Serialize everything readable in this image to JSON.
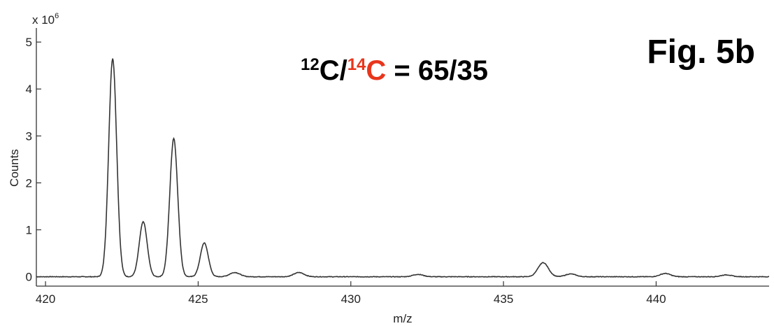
{
  "figure_label": "Fig. 5b",
  "annotation": {
    "mass1": "12",
    "element1": "C/",
    "mass2": "14",
    "element2": "C",
    "equals": " = 65/35",
    "highlight_color": "#e8361c",
    "text_color": "#000000"
  },
  "chart_data": {
    "type": "line",
    "xlabel": "m/z",
    "ylabel": "Counts",
    "y_multiplier": "x 10",
    "y_exponent": "6",
    "xlim": [
      419.7,
      443.7
    ],
    "ylim": [
      -0.2,
      5.3
    ],
    "x_ticks": [
      420,
      425,
      430,
      435,
      440
    ],
    "y_ticks": [
      0,
      1,
      2,
      3,
      4,
      5
    ],
    "grid": false,
    "line_color": "#333333",
    "peaks": [
      {
        "x": 422.2,
        "y": 4.65
      },
      {
        "x": 423.2,
        "y": 1.17
      },
      {
        "x": 424.2,
        "y": 2.95
      },
      {
        "x": 425.2,
        "y": 0.72
      },
      {
        "x": 426.2,
        "y": 0.09
      },
      {
        "x": 428.3,
        "y": 0.09
      },
      {
        "x": 432.2,
        "y": 0.05
      },
      {
        "x": 436.3,
        "y": 0.3
      },
      {
        "x": 437.2,
        "y": 0.06
      },
      {
        "x": 440.3,
        "y": 0.07
      },
      {
        "x": 442.3,
        "y": 0.04
      }
    ]
  }
}
